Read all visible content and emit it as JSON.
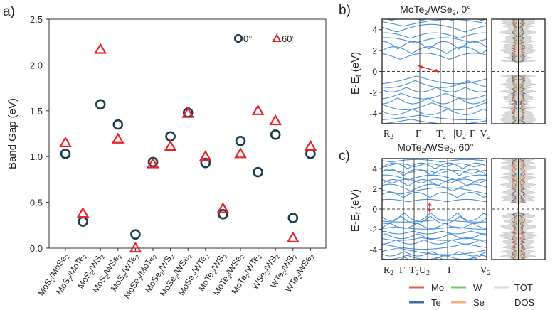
{
  "panel_labels": {
    "a": "a)",
    "b": "b)",
    "c": "c)"
  },
  "colors": {
    "zero": "#1b3a4b",
    "sixty": "#e8242b",
    "band": "#4a90d9",
    "Mo": "#e05a5a",
    "W": "#7cc36e",
    "TOT": "#d9d9d9",
    "Te": "#3a6fa8",
    "Se": "#f2b07a"
  },
  "chart_data": [
    {
      "type": "scatter",
      "title": "",
      "xlabel": "",
      "ylabel": "Band Gap (eV)",
      "ylim": [
        0,
        2.5
      ],
      "yticks": [
        "0.0",
        "0.5",
        "1.0",
        "1.5",
        "2.0",
        "2.5"
      ],
      "categories": [
        "MoS2/MoSe2",
        "MoS2/MoTe2",
        "MoS2/WS2",
        "MoS2/WSe2",
        "MoS2/WTe2",
        "MoSe2/MoTe2",
        "MoSe2/WS2",
        "MoSe2/WSe2",
        "MoSe2/WTe2",
        "MoTe2/WS2",
        "MoTe2/WSe2",
        "MoTe2/WTe2",
        "WSe2/WS2",
        "WTe2/WS2",
        "WTe2/WSe2"
      ],
      "category_labels": [
        {
          "base": "MoS",
          "sub1": "2",
          "mid": "/MoSe",
          "sub2": "2"
        },
        {
          "base": "MoS",
          "sub1": "2",
          "mid": "/MoTe",
          "sub2": "2"
        },
        {
          "base": "MoS",
          "sub1": "2",
          "mid": "/WS",
          "sub2": "2"
        },
        {
          "base": "MoS",
          "sub1": "2",
          "mid": "/WSe",
          "sub2": "2"
        },
        {
          "base": "MoS",
          "sub1": "2",
          "mid": "/WTe",
          "sub2": "2"
        },
        {
          "base": "MoSe",
          "sub1": "2",
          "mid": "/MoTe",
          "sub2": "2"
        },
        {
          "base": "MoSe",
          "sub1": "2",
          "mid": "/WS",
          "sub2": "2"
        },
        {
          "base": "MoSe",
          "sub1": "2",
          "mid": "/WSe",
          "sub2": "2"
        },
        {
          "base": "MoSe",
          "sub1": "2",
          "mid": "/WTe",
          "sub2": "2"
        },
        {
          "base": "MoTe",
          "sub1": "2",
          "mid": "/WS",
          "sub2": "2"
        },
        {
          "base": "MoTe",
          "sub1": "2",
          "mid": "/WSe",
          "sub2": "2"
        },
        {
          "base": "MoTe",
          "sub1": "2",
          "mid": "/WTe",
          "sub2": "2"
        },
        {
          "base": "WSe",
          "sub1": "2",
          "mid": "/WS",
          "sub2": "2"
        },
        {
          "base": "WTe",
          "sub1": "2",
          "mid": "/WS",
          "sub2": "2"
        },
        {
          "base": "WTe",
          "sub1": "2",
          "mid": "/WSe",
          "sub2": "2"
        }
      ],
      "series": [
        {
          "name": "0°",
          "marker": "circle",
          "values": [
            1.03,
            0.29,
            1.57,
            1.35,
            0.15,
            0.94,
            1.22,
            1.48,
            0.93,
            0.37,
            1.17,
            0.83,
            1.24,
            0.33,
            1.03
          ]
        },
        {
          "name": "60°",
          "marker": "triangle",
          "values": [
            1.15,
            0.38,
            2.17,
            1.19,
            0.0,
            0.92,
            1.11,
            1.47,
            1.0,
            0.43,
            1.03,
            1.5,
            1.39,
            0.11,
            1.11
          ]
        }
      ],
      "legend": {
        "position": "top-right",
        "entries": [
          {
            "text": "0",
            "deg": "°"
          },
          {
            "text": "60",
            "deg": "°"
          }
        ]
      }
    },
    {
      "type": "line",
      "title": {
        "pre": "MoTe",
        "sub": "2",
        "mid": "/WSe",
        "sub2": "2",
        "post": ", 0°"
      },
      "ylabel": {
        "pre": "E-E",
        "sub": "f",
        "post": " (eV)"
      },
      "ylim": [
        -5,
        5
      ],
      "yticks": [
        "4",
        "2",
        "0",
        "-2",
        "-4"
      ],
      "kpath": [
        {
          "label": "R",
          "sub": "2"
        },
        {
          "label": "Γ",
          "sub": ""
        },
        {
          "label": "T",
          "sub": "2"
        },
        {
          "label": "|U",
          "sub": "2"
        },
        {
          "label": "Γ",
          "sub": ""
        },
        {
          "label": "V",
          "sub": "2"
        }
      ],
      "fermi_level": 0,
      "gap_annotation": "indirect"
    },
    {
      "type": "line",
      "title": {
        "pre": "MoTe",
        "sub": "2",
        "mid": "/WSe",
        "sub2": "2",
        "post": ", 60°"
      },
      "ylabel": {
        "pre": "E-E",
        "sub": "f",
        "post": " (eV)"
      },
      "ylim": [
        -5,
        5
      ],
      "yticks": [
        "4",
        "2",
        "0",
        "-2",
        "-4"
      ],
      "kpath": [
        {
          "label": "R",
          "sub": "2"
        },
        {
          "label": "Γ",
          "sub": ""
        },
        {
          "label": "T",
          "sub": "2"
        },
        {
          "label": "|U",
          "sub": "2"
        },
        {
          "label": "Γ",
          "sub": ""
        },
        {
          "label": "V",
          "sub": "2"
        }
      ],
      "fermi_level": 0,
      "gap_annotation": "direct"
    }
  ],
  "dos_legend": {
    "entries": [
      "Mo",
      "W",
      "TOT",
      "Te",
      "Se"
    ],
    "title": "DOS"
  }
}
